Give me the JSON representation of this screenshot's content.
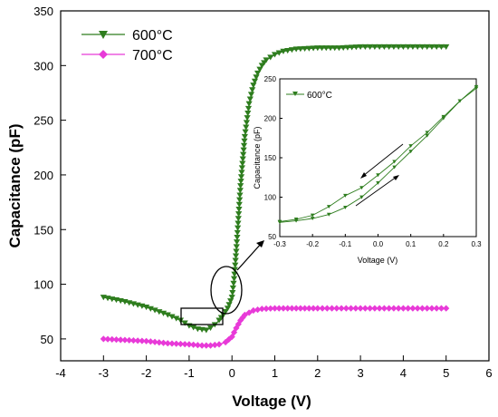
{
  "chart_data": [
    {
      "type": "line",
      "title": "",
      "xlabel": "Voltage (V)",
      "ylabel": "Capacitance (pF)",
      "xlim": [
        -4,
        6
      ],
      "ylim": [
        30,
        350
      ],
      "xticks": [
        -4,
        -3,
        -2,
        -1,
        0,
        1,
        2,
        3,
        4,
        5,
        6
      ],
      "yticks": [
        50,
        100,
        150,
        200,
        250,
        300,
        350
      ],
      "legend": "top-left",
      "series": [
        {
          "name": "600°C",
          "color": "#2e7d1e",
          "marker": "triangle-down",
          "x": [
            -3,
            -2.5,
            -2,
            -1.5,
            -1.2,
            -1.0,
            -0.8,
            -0.6,
            -0.5,
            -0.4,
            -0.3,
            -0.2,
            -0.1,
            0,
            0.05,
            0.1,
            0.15,
            0.2,
            0.3,
            0.4,
            0.5,
            0.6,
            0.7,
            0.8,
            1.0,
            1.2,
            1.5,
            2,
            2.5,
            3,
            4,
            5
          ],
          "y": [
            88,
            84,
            79,
            72,
            67,
            62,
            59,
            58,
            60,
            63,
            67,
            72,
            78,
            88,
            105,
            130,
            160,
            190,
            235,
            265,
            282,
            293,
            300,
            305,
            310,
            313,
            315,
            316,
            316,
            317,
            317,
            317
          ]
        },
        {
          "name": "700°C",
          "color": "#e83ad8",
          "marker": "diamond",
          "x": [
            -3,
            -2.5,
            -2,
            -1.5,
            -1.0,
            -0.7,
            -0.5,
            -0.3,
            -0.15,
            0,
            0.1,
            0.2,
            0.3,
            0.5,
            0.7,
            1.0,
            1.5,
            2,
            3,
            4,
            5
          ],
          "y": [
            50,
            49,
            48,
            46,
            45,
            44,
            44,
            45,
            47,
            52,
            60,
            67,
            72,
            76,
            77.5,
            78,
            78,
            78,
            78,
            78,
            78
          ]
        }
      ]
    },
    {
      "type": "line",
      "title": "",
      "xlabel": "Voltage (V)",
      "ylabel": "Capacitance (pF)",
      "xlim": [
        -0.3,
        0.3
      ],
      "ylim": [
        50,
        250
      ],
      "xticks": [
        -0.3,
        -0.2,
        -0.1,
        0.0,
        0.1,
        0.2,
        0.3
      ],
      "yticks": [
        50,
        100,
        150,
        200,
        250
      ],
      "legend": "top-left",
      "series": [
        {
          "name": "600°C",
          "color": "#2e7d1e",
          "marker": "triangle-down",
          "x": [
            -0.3,
            -0.25,
            -0.2,
            -0.15,
            -0.1,
            -0.05,
            0.0,
            0.05,
            0.1,
            0.15,
            0.2,
            0.25,
            0.3
          ],
          "y": [
            68,
            70,
            73,
            78,
            87,
            100,
            118,
            138,
            158,
            178,
            200,
            222,
            240
          ]
        },
        {
          "name": "600°C",
          "color": "#2e7d1e",
          "marker": "triangle-down",
          "x": [
            -0.3,
            -0.25,
            -0.2,
            -0.15,
            -0.1,
            -0.05,
            0.0,
            0.05,
            0.1,
            0.15,
            0.2,
            0.25,
            0.3
          ],
          "y": [
            69,
            72,
            77,
            88,
            102,
            112,
            128,
            145,
            165,
            182,
            202,
            222,
            238
          ]
        }
      ]
    }
  ]
}
